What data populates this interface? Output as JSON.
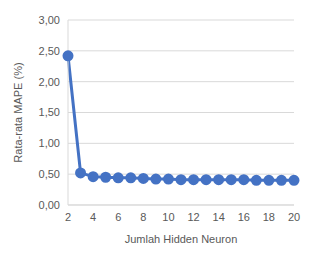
{
  "chart_data": {
    "type": "line",
    "x_label": "Jumlah Hidden Neuron",
    "y_label": "Rata-rata MAPE (%)",
    "categories": [
      2,
      null,
      4,
      null,
      6,
      null,
      8,
      null,
      10,
      null,
      12,
      null,
      14,
      null,
      16,
      null,
      18,
      null,
      20
    ],
    "values": [
      2.42,
      0.52,
      0.46,
      0.45,
      0.44,
      0.44,
      0.43,
      0.42,
      0.42,
      0.41,
      0.41,
      0.41,
      0.41,
      0.41,
      0.41,
      0.4,
      0.4,
      0.4,
      0.4
    ],
    "color": "#4472c4",
    "marker": "circle",
    "ylim": [
      0,
      3
    ],
    "yticks": [
      {
        "value": 0,
        "label": "0,00"
      },
      {
        "value": 0.5,
        "label": "0,50"
      },
      {
        "value": 1,
        "label": "1,00"
      },
      {
        "value": 1.5,
        "label": "1,50"
      },
      {
        "value": 2,
        "label": "2,00"
      },
      {
        "value": 2.5,
        "label": "2,50"
      },
      {
        "value": 3,
        "label": "3,00"
      }
    ],
    "grid": true
  }
}
